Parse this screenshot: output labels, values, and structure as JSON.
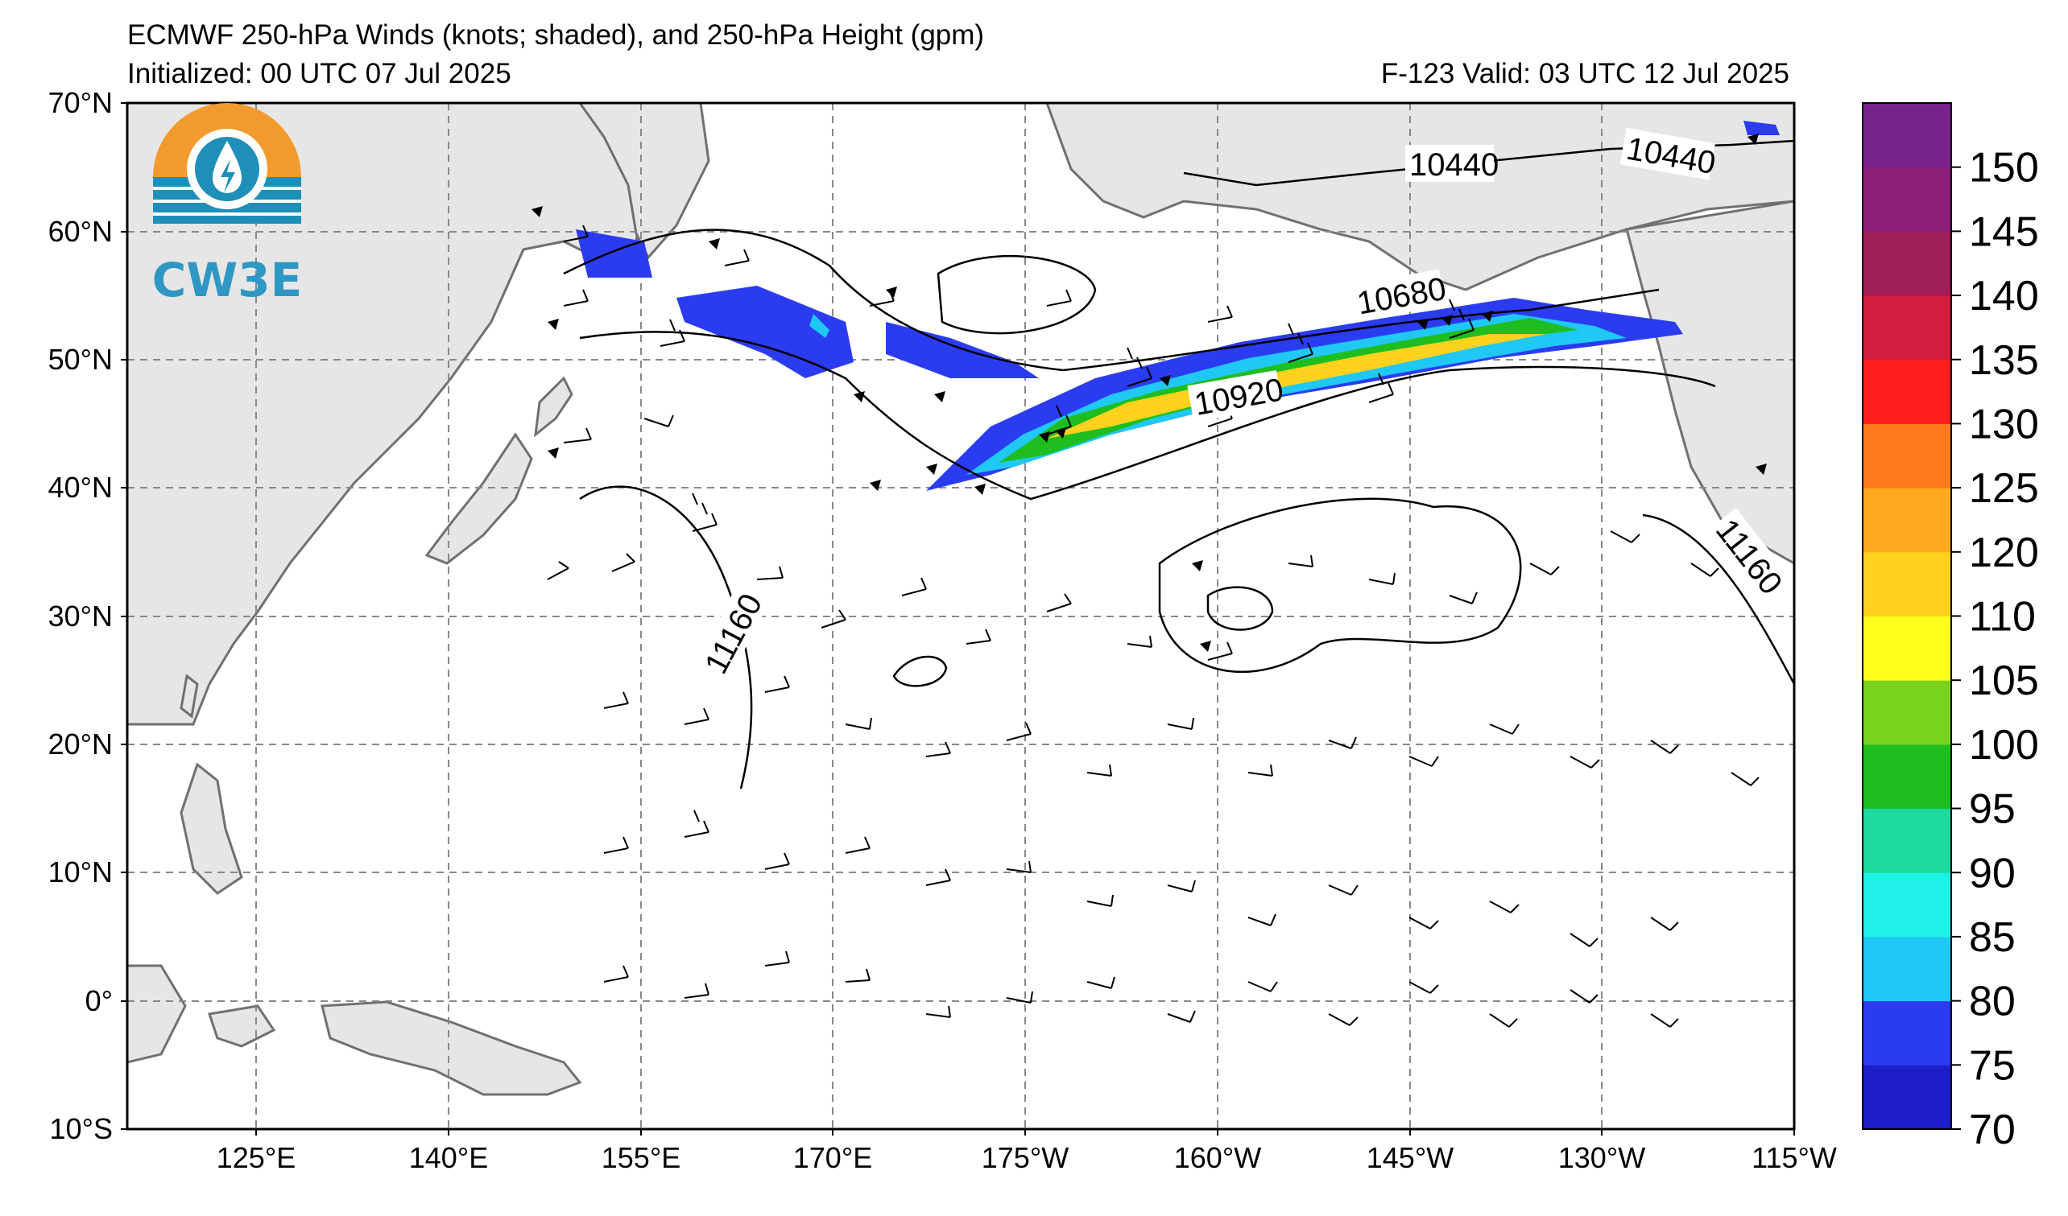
{
  "header": {
    "title": "ECMWF 250-hPa Winds (knots; shaded), and 250-hPa Height (gpm)",
    "initialized": "Initialized: 00 UTC 07 Jul 2025",
    "valid": "F-123  Valid: 03 UTC 12 Jul 2025"
  },
  "logo": {
    "text": "CW3E",
    "colors": {
      "sun": "#F39A2E",
      "water": "#1D8FB8",
      "text": "#2E97C4"
    }
  },
  "map": {
    "lat_labels": [
      "70°N",
      "60°N",
      "50°N",
      "40°N",
      "30°N",
      "20°N",
      "10°N",
      "0°",
      "10°S"
    ],
    "lon_labels": [
      "125°E",
      "140°E",
      "155°E",
      "170°E",
      "175°W",
      "160°W",
      "145°W",
      "130°W",
      "115°W"
    ],
    "land_color": "#E6E6E6",
    "coast_color": "#707070",
    "height_contours": [
      {
        "label": "10440"
      },
      {
        "label": "10440"
      },
      {
        "label": "10680"
      },
      {
        "label": "10920"
      },
      {
        "label": "11160"
      },
      {
        "label": "11160"
      }
    ]
  },
  "colorbar": {
    "units": "knots",
    "ticks": [
      "70",
      "75",
      "80",
      "85",
      "90",
      "95",
      "100",
      "105",
      "110",
      "120",
      "125",
      "130",
      "135",
      "140",
      "145",
      "150"
    ],
    "colors": [
      "#1E1EC8",
      "#2B3CF0",
      "#1FC8F5",
      "#1EF2E6",
      "#1ED9A0",
      "#1EBE1E",
      "#78D21E",
      "#FFFF1E",
      "#FFD21E",
      "#FFAA1E",
      "#FF7A1E",
      "#FF1E1E",
      "#D21E3C",
      "#A01E5A",
      "#8C1E78",
      "#78238C"
    ]
  }
}
